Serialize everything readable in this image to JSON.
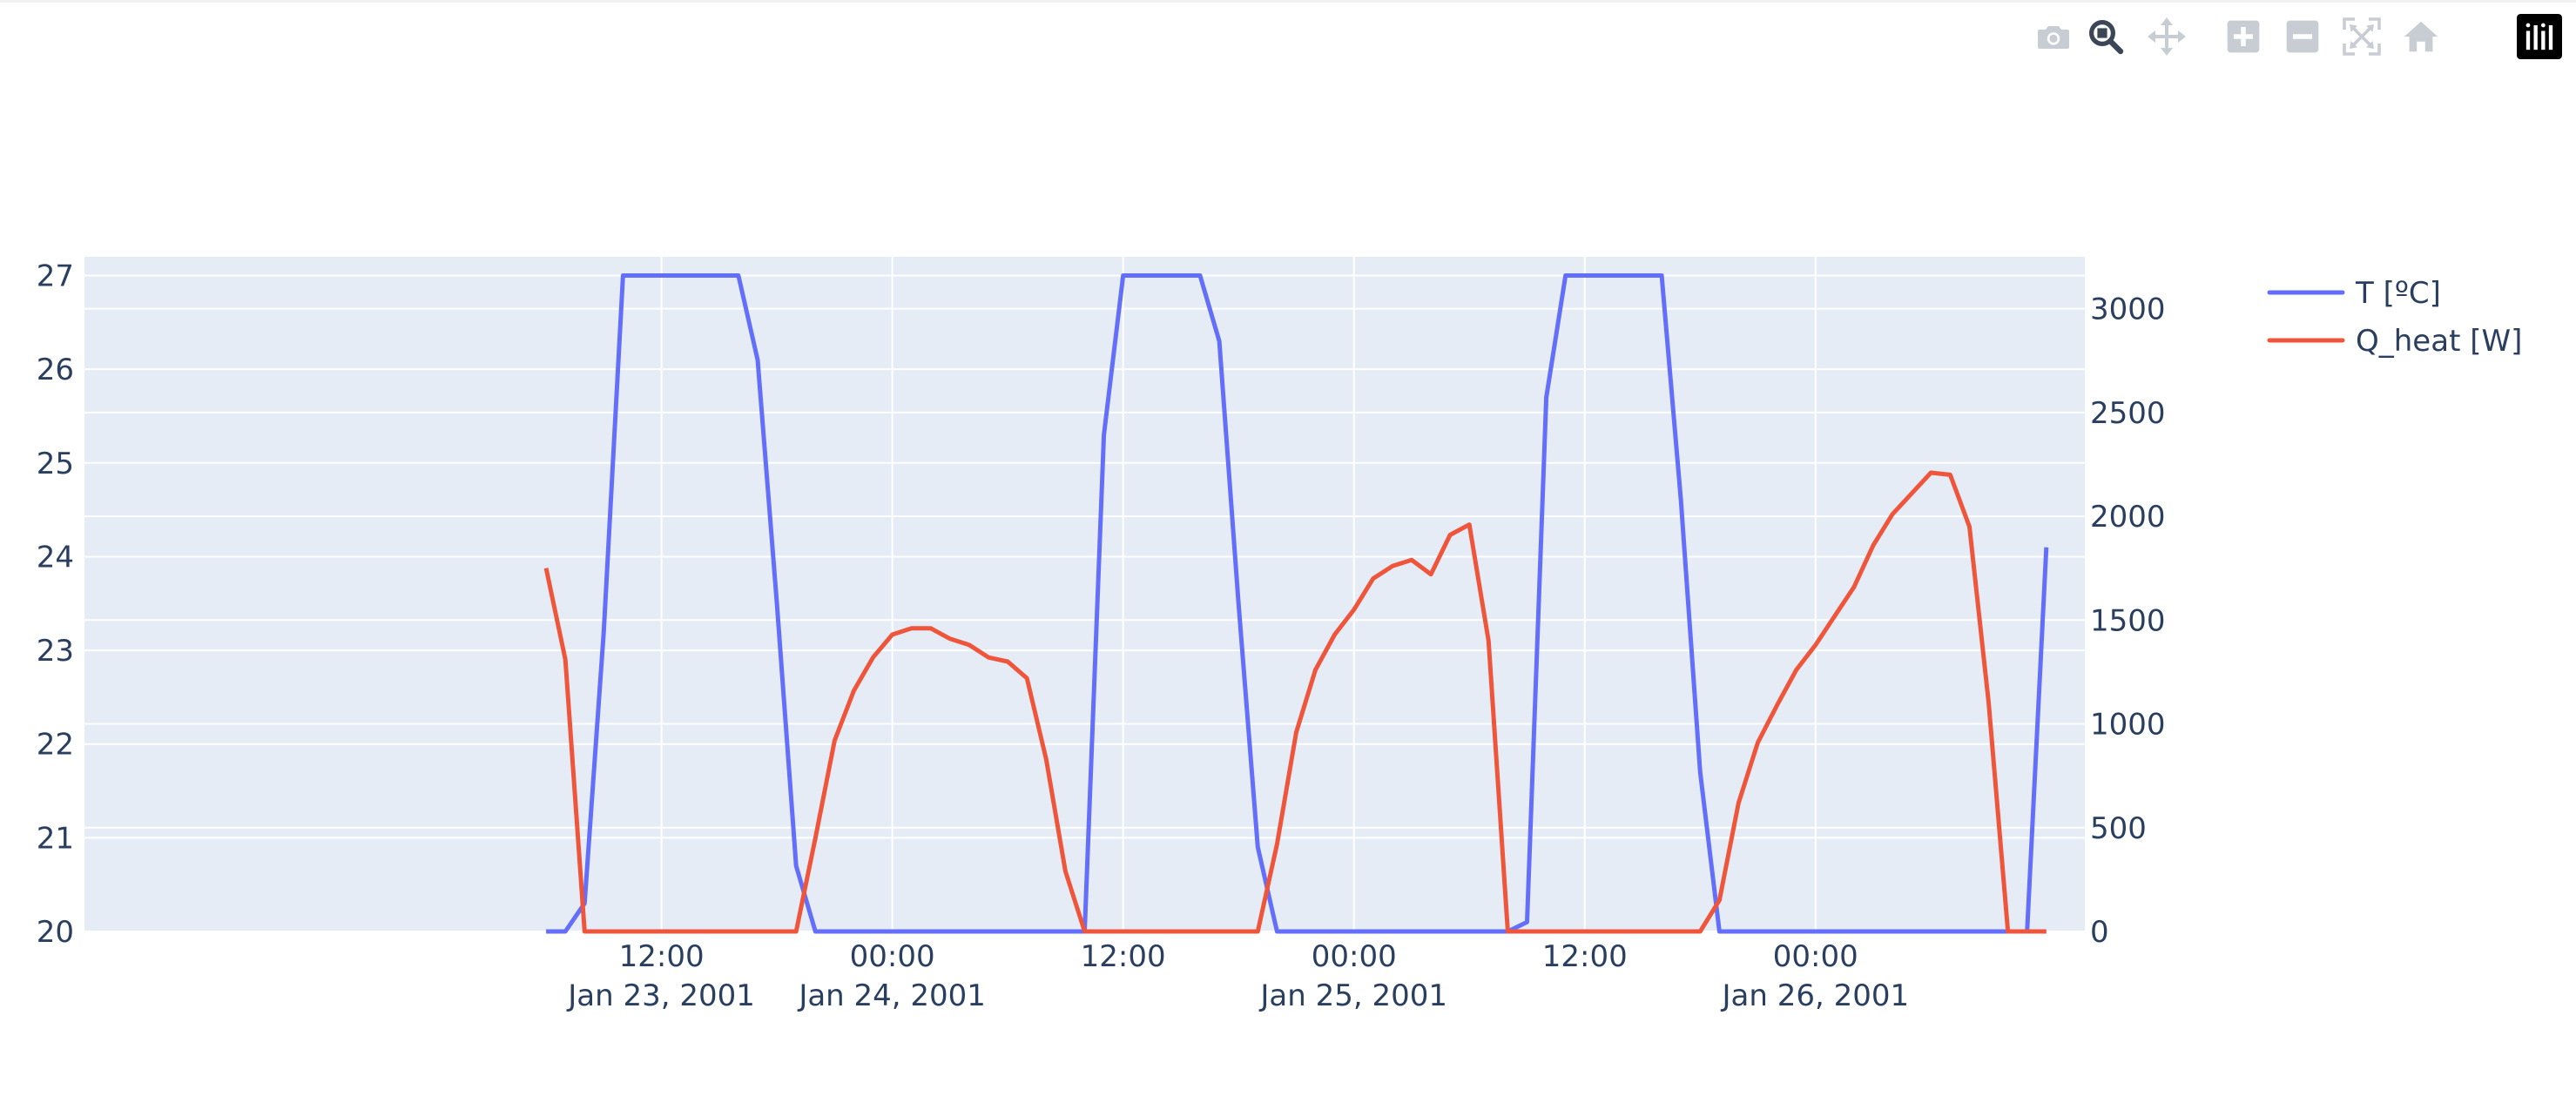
{
  "modebar": {
    "buttons": [
      {
        "name": "camera-icon",
        "title": "Download plot as a png"
      },
      {
        "name": "zoom-icon",
        "title": "Zoom",
        "active": true
      },
      {
        "name": "pan-icon",
        "title": "Pan"
      },
      {
        "name": "zoom-in-icon",
        "title": "Zoom in"
      },
      {
        "name": "zoom-out-icon",
        "title": "Zoom out"
      },
      {
        "name": "autoscale-icon",
        "title": "Autoscale"
      },
      {
        "name": "reset-axes-icon",
        "title": "Reset axes"
      },
      {
        "name": "plotly-logo-icon",
        "title": "Produced with Plotly"
      }
    ]
  },
  "colors": {
    "plot_bg": "#e5ecf6",
    "grid": "#ffffff",
    "text": "#2a3f5f",
    "series_T": "#636efa",
    "series_Q": "#ef553b"
  },
  "chart_data": {
    "type": "line",
    "title": "",
    "xlabel": "",
    "ylabel": "",
    "y2label": "",
    "x_range": [
      "2001-01-22T06:00",
      "2001-01-26T14:00"
    ],
    "y_range": [
      20,
      27.2
    ],
    "y2_range": [
      0,
      3250
    ],
    "x_ticks": [
      {
        "t": "2001-01-23T12:00",
        "label": "12:00",
        "sublabel": "Jan 23, 2001"
      },
      {
        "t": "2001-01-24T00:00",
        "label": "00:00",
        "sublabel": "Jan 24, 2001"
      },
      {
        "t": "2001-01-24T12:00",
        "label": "12:00",
        "sublabel": ""
      },
      {
        "t": "2001-01-25T00:00",
        "label": "00:00",
        "sublabel": "Jan 25, 2001"
      },
      {
        "t": "2001-01-25T12:00",
        "label": "12:00",
        "sublabel": ""
      },
      {
        "t": "2001-01-26T00:00",
        "label": "00:00",
        "sublabel": "Jan 26, 2001"
      }
    ],
    "y_ticks": [
      "20",
      "21",
      "22",
      "23",
      "24",
      "25",
      "26",
      "27"
    ],
    "y2_ticks": [
      "0",
      "500",
      "1000",
      "1500",
      "2000",
      "2500",
      "3000"
    ],
    "grid": true,
    "legend_position": "top-right",
    "series": [
      {
        "name": "T [ºC]",
        "axis": "y",
        "x": [
          "2001-01-23T06:00",
          "2001-01-23T07:00",
          "2001-01-23T08:00",
          "2001-01-23T09:00",
          "2001-01-23T10:00",
          "2001-01-23T11:00",
          "2001-01-23T12:00",
          "2001-01-23T13:00",
          "2001-01-23T14:00",
          "2001-01-23T15:00",
          "2001-01-23T16:00",
          "2001-01-23T17:00",
          "2001-01-23T18:00",
          "2001-01-23T19:00",
          "2001-01-23T20:00",
          "2001-01-23T21:00",
          "2001-01-23T22:00",
          "2001-01-23T23:00",
          "2001-01-24T00:00",
          "2001-01-24T01:00",
          "2001-01-24T02:00",
          "2001-01-24T03:00",
          "2001-01-24T04:00",
          "2001-01-24T05:00",
          "2001-01-24T06:00",
          "2001-01-24T07:00",
          "2001-01-24T08:00",
          "2001-01-24T09:00",
          "2001-01-24T10:00",
          "2001-01-24T11:00",
          "2001-01-24T12:00",
          "2001-01-24T13:00",
          "2001-01-24T14:00",
          "2001-01-24T15:00",
          "2001-01-24T16:00",
          "2001-01-24T17:00",
          "2001-01-24T18:00",
          "2001-01-24T19:00",
          "2001-01-24T20:00",
          "2001-01-24T21:00",
          "2001-01-24T22:00",
          "2001-01-24T23:00",
          "2001-01-25T00:00",
          "2001-01-25T01:00",
          "2001-01-25T02:00",
          "2001-01-25T03:00",
          "2001-01-25T04:00",
          "2001-01-25T05:00",
          "2001-01-25T06:00",
          "2001-01-25T07:00",
          "2001-01-25T08:00",
          "2001-01-25T09:00",
          "2001-01-25T10:00",
          "2001-01-25T11:00",
          "2001-01-25T12:00",
          "2001-01-25T13:00",
          "2001-01-25T14:00",
          "2001-01-25T15:00",
          "2001-01-25T16:00",
          "2001-01-25T17:00",
          "2001-01-25T18:00",
          "2001-01-25T19:00",
          "2001-01-25T20:00",
          "2001-01-25T21:00",
          "2001-01-25T22:00",
          "2001-01-25T23:00",
          "2001-01-26T00:00",
          "2001-01-26T01:00",
          "2001-01-26T02:00",
          "2001-01-26T03:00",
          "2001-01-26T04:00",
          "2001-01-26T05:00",
          "2001-01-26T06:00",
          "2001-01-26T07:00",
          "2001-01-26T08:00",
          "2001-01-26T09:00",
          "2001-01-26T10:00",
          "2001-01-26T11:00",
          "2001-01-26T12:00"
        ],
        "values": [
          20,
          20,
          20.3,
          23.2,
          27,
          27,
          27,
          27,
          27,
          27,
          27,
          26.1,
          23.5,
          20.7,
          20,
          20,
          20,
          20,
          20,
          20,
          20,
          20,
          20,
          20,
          20,
          20,
          20,
          20,
          20,
          25.3,
          27,
          27,
          27,
          27,
          27,
          26.3,
          23.5,
          20.9,
          20,
          20,
          20,
          20,
          20,
          20,
          20,
          20,
          20,
          20,
          20,
          20,
          20,
          20.1,
          25.7,
          27,
          27,
          27,
          27,
          27,
          27,
          24.6,
          21.7,
          20,
          20,
          20,
          20,
          20,
          20,
          20,
          20,
          20,
          20,
          20,
          20,
          20,
          20,
          20,
          20,
          20,
          24.1
        ]
      },
      {
        "name": "Q_heat [W]",
        "axis": "y2",
        "x": [
          "2001-01-23T06:00",
          "2001-01-23T07:00",
          "2001-01-23T08:00",
          "2001-01-23T09:00",
          "2001-01-23T10:00",
          "2001-01-23T11:00",
          "2001-01-23T12:00",
          "2001-01-23T13:00",
          "2001-01-23T14:00",
          "2001-01-23T15:00",
          "2001-01-23T16:00",
          "2001-01-23T17:00",
          "2001-01-23T18:00",
          "2001-01-23T19:00",
          "2001-01-23T20:00",
          "2001-01-23T21:00",
          "2001-01-23T22:00",
          "2001-01-23T23:00",
          "2001-01-24T00:00",
          "2001-01-24T01:00",
          "2001-01-24T02:00",
          "2001-01-24T03:00",
          "2001-01-24T04:00",
          "2001-01-24T05:00",
          "2001-01-24T06:00",
          "2001-01-24T07:00",
          "2001-01-24T08:00",
          "2001-01-24T09:00",
          "2001-01-24T10:00",
          "2001-01-24T11:00",
          "2001-01-24T12:00",
          "2001-01-24T13:00",
          "2001-01-24T14:00",
          "2001-01-24T15:00",
          "2001-01-24T16:00",
          "2001-01-24T17:00",
          "2001-01-24T18:00",
          "2001-01-24T19:00",
          "2001-01-24T20:00",
          "2001-01-24T21:00",
          "2001-01-24T22:00",
          "2001-01-24T23:00",
          "2001-01-25T00:00",
          "2001-01-25T01:00",
          "2001-01-25T02:00",
          "2001-01-25T03:00",
          "2001-01-25T04:00",
          "2001-01-25T05:00",
          "2001-01-25T06:00",
          "2001-01-25T07:00",
          "2001-01-25T08:00",
          "2001-01-25T09:00",
          "2001-01-25T10:00",
          "2001-01-25T11:00",
          "2001-01-25T12:00",
          "2001-01-25T13:00",
          "2001-01-25T14:00",
          "2001-01-25T15:00",
          "2001-01-25T16:00",
          "2001-01-25T17:00",
          "2001-01-25T18:00",
          "2001-01-25T19:00",
          "2001-01-25T20:00",
          "2001-01-25T21:00",
          "2001-01-25T22:00",
          "2001-01-25T23:00",
          "2001-01-26T00:00",
          "2001-01-26T01:00",
          "2001-01-26T02:00",
          "2001-01-26T03:00",
          "2001-01-26T04:00",
          "2001-01-26T05:00",
          "2001-01-26T06:00",
          "2001-01-26T07:00",
          "2001-01-26T08:00",
          "2001-01-26T09:00",
          "2001-01-26T10:00",
          "2001-01-26T11:00",
          "2001-01-26T12:00"
        ],
        "values": [
          1750,
          1310,
          0,
          0,
          0,
          0,
          0,
          0,
          0,
          0,
          0,
          0,
          0,
          0,
          450,
          920,
          1160,
          1320,
          1430,
          1460,
          1460,
          1410,
          1380,
          1320,
          1300,
          1220,
          830,
          290,
          0,
          0,
          0,
          0,
          0,
          0,
          0,
          0,
          0,
          0,
          420,
          960,
          1260,
          1430,
          1550,
          1700,
          1760,
          1790,
          1720,
          1910,
          1960,
          1400,
          0,
          0,
          0,
          0,
          0,
          0,
          0,
          0,
          0,
          0,
          0,
          150,
          620,
          910,
          1090,
          1260,
          1380,
          1520,
          1660,
          1860,
          2010,
          2110,
          2210,
          2200,
          1950,
          1100,
          0,
          0,
          0
        ]
      }
    ]
  }
}
